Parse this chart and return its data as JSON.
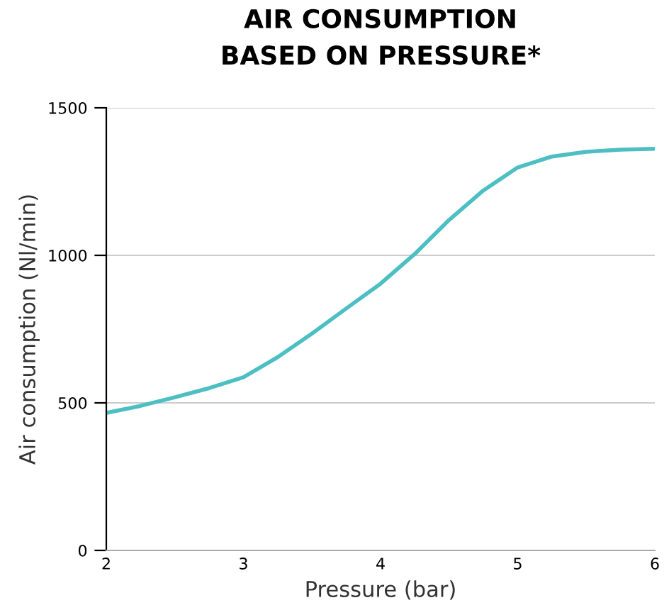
{
  "chart_data": {
    "type": "line",
    "title": "AIR CONSUMPTION\nBASED ON PRESSURE*",
    "xlabel": "Pressure (bar)",
    "ylabel": "Air consumption (Nl/min)",
    "x": [
      2,
      2.25,
      2.5,
      2.75,
      3,
      3.25,
      3.5,
      3.75,
      4,
      4.25,
      4.5,
      4.75,
      5,
      5.25,
      5.5,
      5.75,
      6
    ],
    "series": [
      {
        "color": "#4dbfc3",
        "values": [
          466,
          490,
          519,
          550,
          587,
          655,
          735,
          820,
          904,
          1005,
          1120,
          1220,
          1298,
          1335,
          1351,
          1358,
          1361
        ]
      }
    ],
    "xlim": [
      2,
      6
    ],
    "ylim": [
      0,
      1500
    ],
    "xticks": [
      2,
      3,
      4,
      5,
      6
    ],
    "yticks": [
      0,
      500,
      1000,
      1500
    ],
    "grid": "y",
    "marker": "none",
    "line_style": "solid"
  }
}
